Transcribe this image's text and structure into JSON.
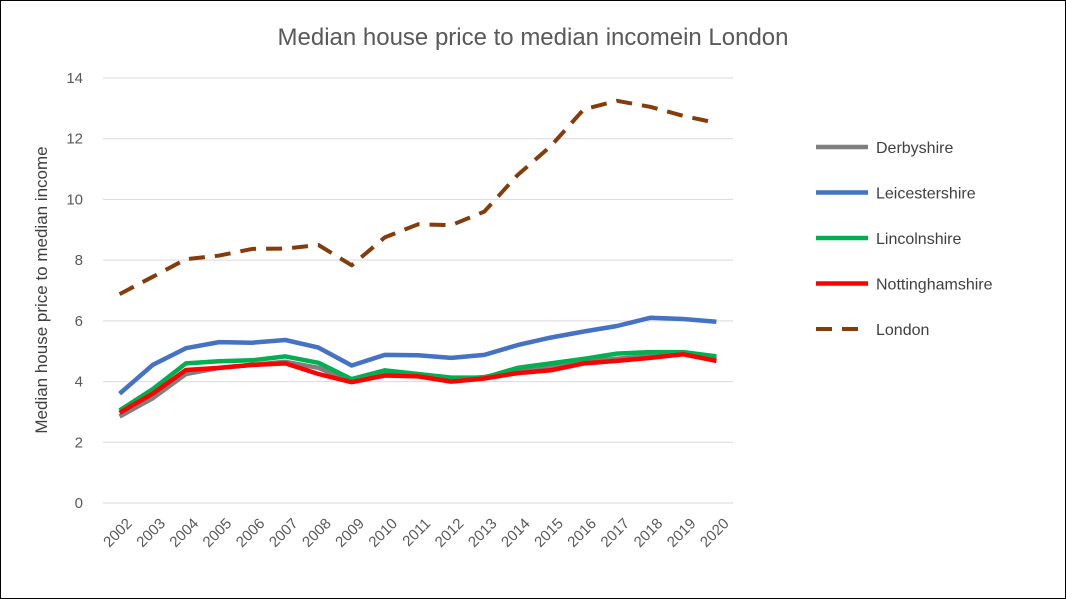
{
  "chart_data": {
    "type": "line",
    "title": "Median house price to median incomein London",
    "xlabel": "",
    "ylabel": "Median house price to median income",
    "ylim": [
      0,
      14
    ],
    "yticks": [
      0,
      2,
      4,
      6,
      8,
      10,
      12,
      14
    ],
    "grid": "horizontal",
    "legend_position": "right",
    "x": [
      "2002",
      "2003",
      "2004",
      "2005",
      "2006",
      "2007",
      "2008",
      "2009",
      "2010",
      "2011",
      "2012",
      "2013",
      "2014",
      "2015",
      "2016",
      "2017",
      "2018",
      "2019",
      "2020"
    ],
    "series": [
      {
        "name": "Derbyshire",
        "color": "#7f7f7f",
        "style": "solid",
        "values": [
          2.85,
          3.45,
          4.25,
          4.45,
          4.55,
          4.65,
          4.45,
          4.0,
          4.25,
          4.2,
          4.05,
          4.15,
          4.35,
          4.5,
          4.65,
          4.75,
          4.85,
          4.95,
          4.75
        ]
      },
      {
        "name": "Leicestershire",
        "color": "#4472c4",
        "style": "solid",
        "values": [
          3.6,
          4.55,
          5.1,
          5.3,
          5.28,
          5.37,
          5.12,
          4.53,
          4.88,
          4.87,
          4.78,
          4.88,
          5.2,
          5.45,
          5.65,
          5.83,
          6.1,
          6.06,
          5.97
        ]
      },
      {
        "name": "Lincolnshire",
        "color": "#00b050",
        "style": "solid",
        "values": [
          3.05,
          3.75,
          4.6,
          4.67,
          4.7,
          4.83,
          4.62,
          4.08,
          4.37,
          4.25,
          4.13,
          4.13,
          4.45,
          4.6,
          4.75,
          4.92,
          4.97,
          4.97,
          4.83
        ]
      },
      {
        "name": "Nottinghamshire",
        "color": "#ff0000",
        "style": "solid",
        "values": [
          2.97,
          3.6,
          4.38,
          4.45,
          4.55,
          4.6,
          4.25,
          3.98,
          4.2,
          4.17,
          4.0,
          4.1,
          4.28,
          4.37,
          4.6,
          4.68,
          4.78,
          4.9,
          4.68
        ]
      },
      {
        "name": "London",
        "color": "#843c0c",
        "style": "dashed",
        "values": [
          6.88,
          7.45,
          8.03,
          8.15,
          8.37,
          8.38,
          8.5,
          7.83,
          8.75,
          9.18,
          9.15,
          9.6,
          10.8,
          11.75,
          12.97,
          13.25,
          13.05,
          12.75,
          12.52
        ]
      }
    ]
  }
}
